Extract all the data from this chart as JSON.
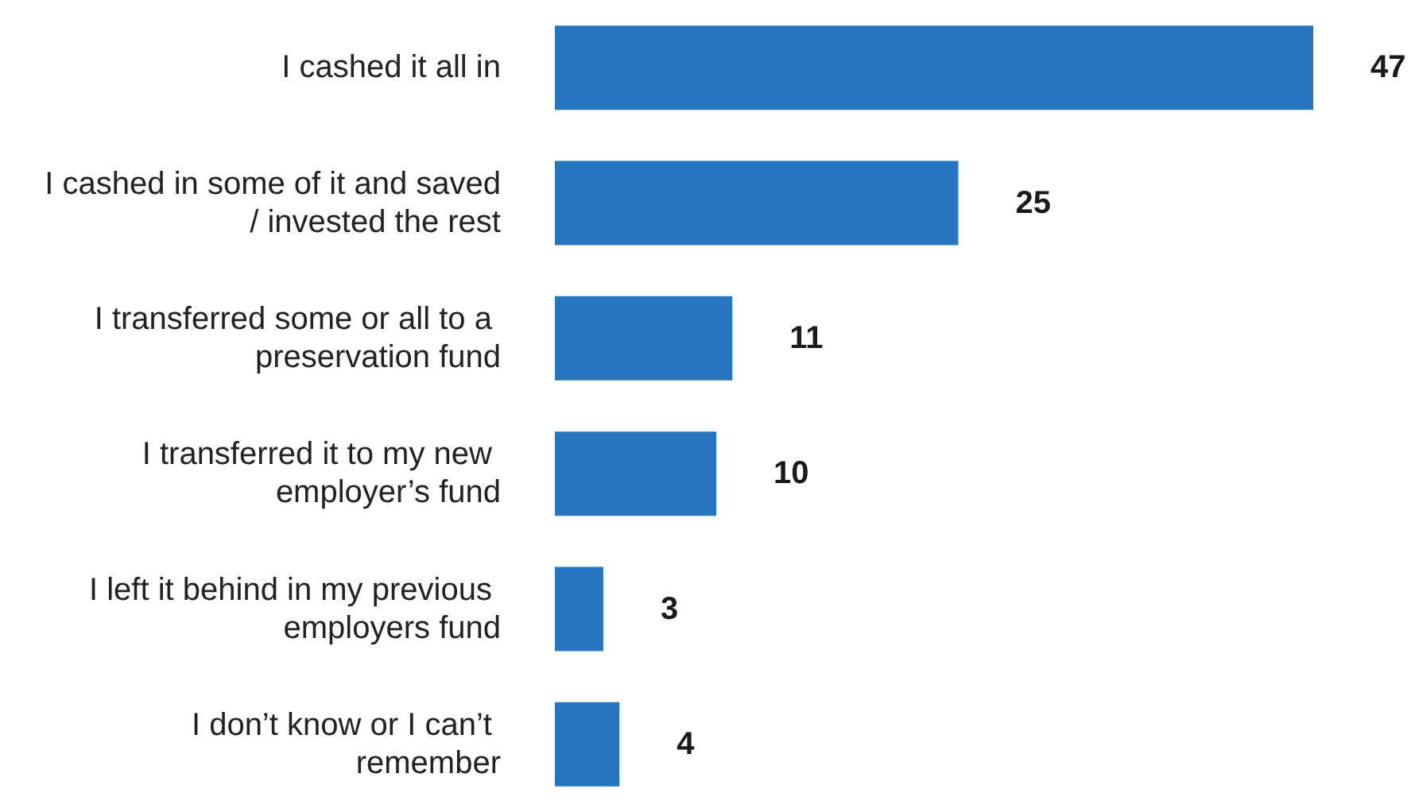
{
  "chart_data": {
    "type": "bar",
    "orientation": "horizontal",
    "categories": [
      "I cashed it all in",
      "I cashed in some of it and saved/ invested the rest",
      "I transferred some or all to a preservation fund",
      "I transferred it to my new employer’s fund",
      "I left it behind in my previous employers fund",
      "I don’t know or I can’t remember"
    ],
    "values": [
      47,
      25,
      11,
      10,
      3,
      4
    ],
    "color": "#2775be",
    "data_labels": true
  }
}
